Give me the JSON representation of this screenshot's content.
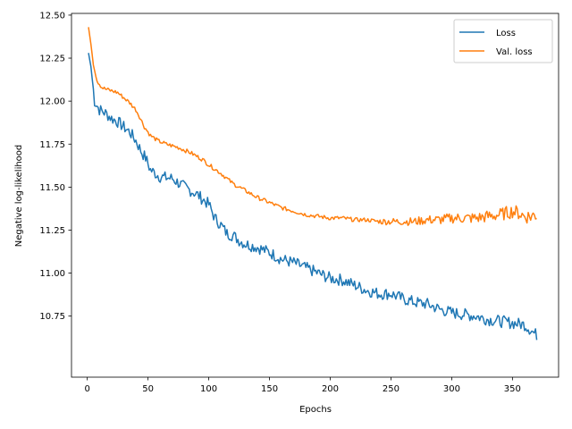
{
  "chart_data": {
    "type": "line",
    "title": "",
    "xlabel": "Epochs",
    "ylabel": "Negative log-likelihood",
    "xlim": [
      -13,
      388
    ],
    "ylim": [
      10.395,
      12.51
    ],
    "xticks": [
      0,
      50,
      100,
      150,
      200,
      250,
      300,
      350
    ],
    "yticks": [
      10.75,
      11.0,
      11.25,
      11.5,
      11.75,
      12.0,
      12.25,
      12.5
    ],
    "xtick_labels": [
      "0",
      "50",
      "100",
      "150",
      "200",
      "250",
      "300",
      "350"
    ],
    "ytick_labels": [
      "10.75",
      "11.00",
      "11.25",
      "11.50",
      "11.75",
      "12.00",
      "12.25",
      "12.50"
    ],
    "grid": false,
    "legend_position": "top-right",
    "series": [
      {
        "name": "Loss",
        "color": "#1f77b4",
        "points": [
          [
            1,
            12.28
          ],
          [
            3,
            12.2
          ],
          [
            6,
            12.0
          ],
          [
            10,
            11.95
          ],
          [
            15,
            11.93
          ],
          [
            20,
            11.9
          ],
          [
            25,
            11.88
          ],
          [
            30,
            11.85
          ],
          [
            35,
            11.82
          ],
          [
            40,
            11.77
          ],
          [
            45,
            11.7
          ],
          [
            48,
            11.67
          ],
          [
            52,
            11.6
          ],
          [
            60,
            11.56
          ],
          [
            70,
            11.55
          ],
          [
            80,
            11.5
          ],
          [
            90,
            11.46
          ],
          [
            95,
            11.43
          ],
          [
            100,
            11.4
          ],
          [
            105,
            11.32
          ],
          [
            110,
            11.28
          ],
          [
            115,
            11.23
          ],
          [
            120,
            11.22
          ],
          [
            125,
            11.19
          ],
          [
            130,
            11.17
          ],
          [
            140,
            11.15
          ],
          [
            150,
            11.12
          ],
          [
            160,
            11.08
          ],
          [
            170,
            11.06
          ],
          [
            180,
            11.03
          ],
          [
            190,
            11.0
          ],
          [
            200,
            10.97
          ],
          [
            210,
            10.96
          ],
          [
            220,
            10.93
          ],
          [
            230,
            10.9
          ],
          [
            240,
            10.88
          ],
          [
            250,
            10.88
          ],
          [
            260,
            10.85
          ],
          [
            270,
            10.83
          ],
          [
            280,
            10.82
          ],
          [
            290,
            10.79
          ],
          [
            300,
            10.77
          ],
          [
            310,
            10.76
          ],
          [
            320,
            10.75
          ],
          [
            330,
            10.73
          ],
          [
            340,
            10.72
          ],
          [
            350,
            10.71
          ],
          [
            360,
            10.7
          ],
          [
            365,
            10.67
          ],
          [
            368,
            10.65
          ],
          [
            370,
            10.64
          ]
        ]
      },
      {
        "name": "Val. loss",
        "color": "#ff7f0e",
        "points": [
          [
            1,
            12.43
          ],
          [
            3,
            12.33
          ],
          [
            5,
            12.22
          ],
          [
            8,
            12.12
          ],
          [
            12,
            12.08
          ],
          [
            15,
            12.07
          ],
          [
            20,
            12.06
          ],
          [
            25,
            12.05
          ],
          [
            30,
            12.02
          ],
          [
            35,
            11.99
          ],
          [
            40,
            11.95
          ],
          [
            43,
            11.91
          ],
          [
            47,
            11.85
          ],
          [
            52,
            11.8
          ],
          [
            58,
            11.77
          ],
          [
            65,
            11.75
          ],
          [
            75,
            11.73
          ],
          [
            85,
            11.7
          ],
          [
            95,
            11.66
          ],
          [
            100,
            11.63
          ],
          [
            110,
            11.58
          ],
          [
            120,
            11.52
          ],
          [
            130,
            11.48
          ],
          [
            140,
            11.44
          ],
          [
            150,
            11.41
          ],
          [
            160,
            11.38
          ],
          [
            170,
            11.36
          ],
          [
            180,
            11.34
          ],
          [
            190,
            11.33
          ],
          [
            200,
            11.32
          ],
          [
            210,
            11.32
          ],
          [
            220,
            11.31
          ],
          [
            230,
            11.31
          ],
          [
            240,
            11.3
          ],
          [
            250,
            11.3
          ],
          [
            260,
            11.3
          ],
          [
            270,
            11.3
          ],
          [
            280,
            11.31
          ],
          [
            290,
            11.31
          ],
          [
            300,
            11.32
          ],
          [
            310,
            11.32
          ],
          [
            320,
            11.32
          ],
          [
            330,
            11.33
          ],
          [
            340,
            11.34
          ],
          [
            350,
            11.36
          ],
          [
            355,
            11.35
          ],
          [
            360,
            11.33
          ],
          [
            365,
            11.33
          ],
          [
            370,
            11.34
          ]
        ]
      }
    ]
  }
}
